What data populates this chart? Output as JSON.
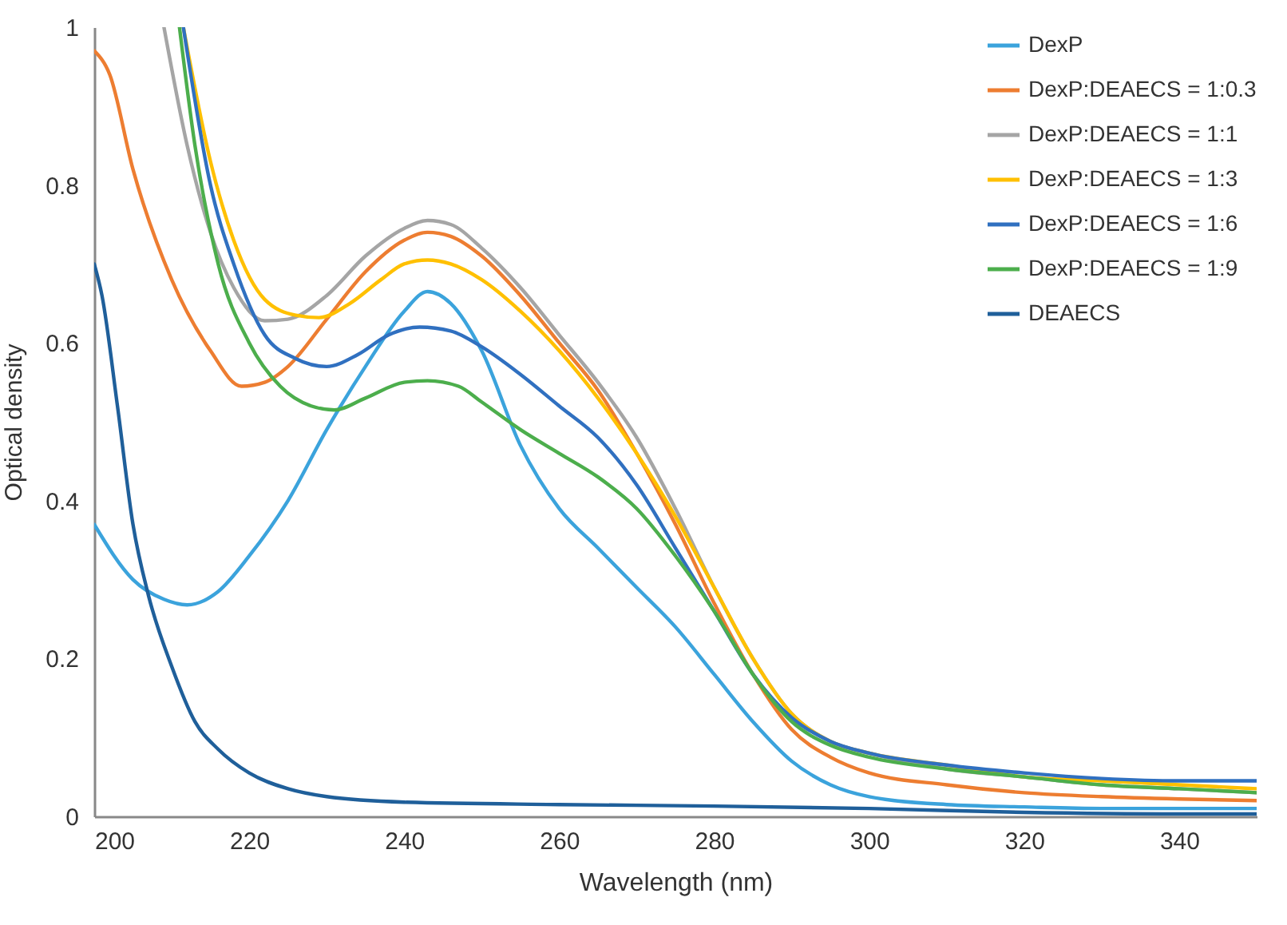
{
  "chart_data": {
    "type": "line",
    "xlabel": "Wavelength (nm)",
    "ylabel": "Optical density",
    "xlim": [
      200,
      350
    ],
    "xticks": [
      200,
      220,
      240,
      260,
      280,
      300,
      320,
      340
    ],
    "ylim": [
      0,
      1
    ],
    "yticks": [
      0,
      0.2,
      0.4,
      0.6,
      0.8,
      1
    ],
    "grid": false,
    "legend": "top right",
    "marker": "none",
    "line_style": "solid",
    "series": [
      {
        "name": "DexP",
        "color": "#3ba3dc",
        "x": [
          200,
          205,
          209,
          212,
          216,
          220,
          225,
          230,
          235,
          240,
          243,
          246,
          250,
          255,
          260,
          265,
          270,
          275,
          280,
          285,
          290,
          295,
          300,
          310,
          320,
          330,
          340,
          350
        ],
        "values": [
          0.37,
          0.3,
          0.275,
          0.268,
          0.285,
          0.33,
          0.4,
          0.49,
          0.57,
          0.64,
          0.665,
          0.65,
          0.59,
          0.47,
          0.39,
          0.34,
          0.29,
          0.24,
          0.18,
          0.12,
          0.07,
          0.04,
          0.025,
          0.015,
          0.012,
          0.01,
          0.01,
          0.01
        ]
      },
      {
        "name": "DexP:DEAECS = 1:0.3",
        "color": "#ed7d31",
        "x": [
          200,
          202,
          205,
          210,
          215,
          219,
          222,
          225,
          230,
          235,
          240,
          243,
          246,
          250,
          255,
          260,
          265,
          270,
          275,
          280,
          285,
          290,
          295,
          300,
          310,
          320,
          330,
          340,
          350
        ],
        "values": [
          0.97,
          0.94,
          0.82,
          0.68,
          0.59,
          0.545,
          0.55,
          0.57,
          0.63,
          0.69,
          0.73,
          0.74,
          0.735,
          0.71,
          0.66,
          0.6,
          0.54,
          0.46,
          0.37,
          0.27,
          0.18,
          0.11,
          0.075,
          0.055,
          0.04,
          0.03,
          0.025,
          0.022,
          0.02
        ]
      },
      {
        "name": "DexP:DEAECS = 1:1",
        "color": "#a5a5a5",
        "x": [
          209,
          212,
          215,
          218,
          222,
          225,
          230,
          235,
          240,
          243,
          246,
          250,
          255,
          260,
          265,
          270,
          275,
          280,
          285,
          290,
          295,
          300,
          310,
          320,
          330,
          340,
          350
        ],
        "values": [
          1.0,
          0.85,
          0.74,
          0.67,
          0.628,
          0.63,
          0.66,
          0.71,
          0.745,
          0.755,
          0.75,
          0.72,
          0.67,
          0.61,
          0.55,
          0.48,
          0.39,
          0.29,
          0.2,
          0.13,
          0.095,
          0.08,
          0.06,
          0.05,
          0.04,
          0.035,
          0.03
        ]
      },
      {
        "name": "DexP:DEAECS = 1:3",
        "color": "#ffc000",
        "x": [
          211.5,
          215,
          218,
          222,
          226,
          229,
          233,
          237,
          240,
          243,
          246,
          250,
          255,
          260,
          265,
          270,
          275,
          280,
          285,
          290,
          295,
          300,
          310,
          320,
          330,
          340,
          350
        ],
        "values": [
          1.0,
          0.83,
          0.73,
          0.655,
          0.635,
          0.632,
          0.65,
          0.68,
          0.7,
          0.705,
          0.7,
          0.68,
          0.64,
          0.59,
          0.53,
          0.46,
          0.38,
          0.29,
          0.2,
          0.13,
          0.095,
          0.08,
          0.065,
          0.05,
          0.045,
          0.04,
          0.035
        ]
      },
      {
        "name": "DexP:DEAECS = 1:6",
        "color": "#3070c0",
        "x": [
          211.5,
          215,
          218,
          222,
          226,
          230,
          234,
          238,
          242,
          246,
          250,
          255,
          260,
          265,
          270,
          275,
          280,
          285,
          290,
          295,
          300,
          310,
          320,
          330,
          340,
          350
        ],
        "values": [
          1.0,
          0.8,
          0.7,
          0.61,
          0.58,
          0.57,
          0.585,
          0.61,
          0.62,
          0.615,
          0.595,
          0.56,
          0.52,
          0.48,
          0.42,
          0.34,
          0.26,
          0.18,
          0.125,
          0.095,
          0.08,
          0.065,
          0.055,
          0.048,
          0.045,
          0.045
        ]
      },
      {
        "name": "DexP:DEAECS = 1:9",
        "color": "#4cae4c",
        "x": [
          211,
          213,
          216,
          220,
          224,
          228,
          231,
          235,
          240,
          243,
          247,
          250,
          255,
          260,
          265,
          270,
          275,
          280,
          285,
          290,
          295,
          300,
          310,
          320,
          330,
          340,
          350
        ],
        "values": [
          1.0,
          0.85,
          0.7,
          0.6,
          0.545,
          0.52,
          0.515,
          0.53,
          0.55,
          0.552,
          0.545,
          0.525,
          0.49,
          0.46,
          0.43,
          0.39,
          0.33,
          0.26,
          0.18,
          0.12,
          0.09,
          0.075,
          0.06,
          0.05,
          0.04,
          0.035,
          0.03
        ]
      },
      {
        "name": "DEAECS",
        "color": "#1f5f9a",
        "x": [
          200,
          201,
          203,
          205,
          207,
          210,
          213,
          216,
          220,
          225,
          230,
          240,
          260,
          280,
          300,
          320,
          340,
          350
        ],
        "values": [
          0.7,
          0.66,
          0.52,
          0.37,
          0.28,
          0.19,
          0.12,
          0.085,
          0.055,
          0.035,
          0.025,
          0.018,
          0.015,
          0.013,
          0.01,
          0.005,
          0.003,
          0.003
        ]
      }
    ]
  }
}
